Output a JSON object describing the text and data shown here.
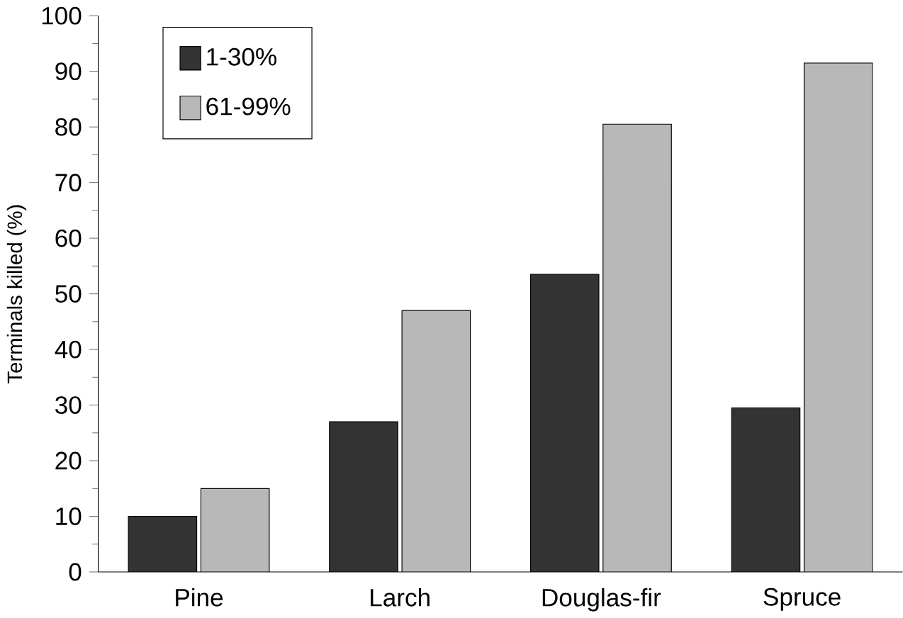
{
  "chart_data": {
    "type": "bar",
    "ylabel": "Terminals killed (%)",
    "categories": [
      "Pine",
      "Larch",
      "Douglas-fir",
      "Spruce"
    ],
    "series": [
      {
        "name": "1-30%",
        "color": "#333333",
        "values": [
          10,
          27,
          53.5,
          29.5
        ]
      },
      {
        "name": "61-99%",
        "color": "#b8b8b8",
        "values": [
          15,
          47,
          80.5,
          91.5
        ]
      }
    ],
    "ylim": [
      0,
      100
    ],
    "yticks": [
      0,
      10,
      20,
      30,
      40,
      50,
      60,
      70,
      80,
      90,
      100
    ],
    "legend": "top left"
  }
}
